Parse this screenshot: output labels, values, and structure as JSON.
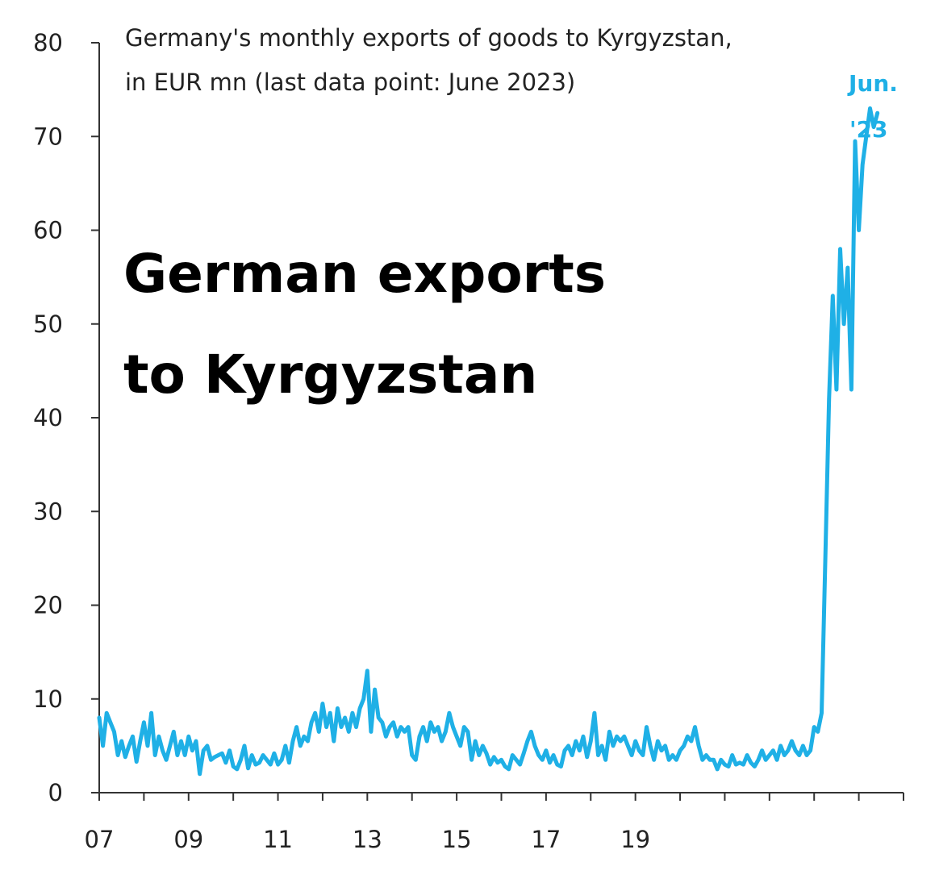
{
  "chart_data": {
    "type": "line",
    "title_lines": [
      "German exports",
      "to Kyrgyzstan"
    ],
    "subtitle_lines": [
      "Germany's monthly exports of goods to Kyrgyzstan,",
      "in EUR mn (last data point: June 2023)"
    ],
    "end_label_lines": [
      "Jun.",
      "'23"
    ],
    "ylim": [
      0,
      80
    ],
    "y_ticks": [
      0,
      10,
      20,
      30,
      40,
      50,
      60,
      70,
      80
    ],
    "x_start_year": 2007,
    "x_end_year": 2025,
    "x_tick_years": [
      2007,
      2008,
      2009,
      2010,
      2011,
      2012,
      2013,
      2014,
      2015,
      2016,
      2017,
      2018,
      2019,
      2020,
      2021,
      2022,
      2023,
      2024,
      2025
    ],
    "x_tick_labels": [
      {
        "year": 2007,
        "label": "07"
      },
      {
        "year": 2009,
        "label": "09"
      },
      {
        "year": 2011,
        "label": "11"
      },
      {
        "year": 2013,
        "label": "13"
      },
      {
        "year": 2015,
        "label": "15"
      },
      {
        "year": 2017,
        "label": "17"
      },
      {
        "year": 2019,
        "label": "19"
      }
    ],
    "grid": false,
    "line_color": "#1fb0e6",
    "series": [
      {
        "start": "2007-01",
        "end": "2023-06",
        "values": [
          8.0,
          5.0,
          8.5,
          7.5,
          6.5,
          4.0,
          5.5,
          3.8,
          5.0,
          6.0,
          3.3,
          5.5,
          7.5,
          5.0,
          8.5,
          4.0,
          6.0,
          4.5,
          3.5,
          5.0,
          6.5,
          4.0,
          5.5,
          4.0,
          6.0,
          4.5,
          5.5,
          2.0,
          4.5,
          5.0,
          3.5,
          3.8,
          4.0,
          4.2,
          3.2,
          4.5,
          2.8,
          2.5,
          3.5,
          5.0,
          2.6,
          4.0,
          3.0,
          3.2,
          4.0,
          3.5,
          3.0,
          4.2,
          3.0,
          3.5,
          5.0,
          3.2,
          5.5,
          7.0,
          5.0,
          6.0,
          5.5,
          7.5,
          8.5,
          6.5,
          9.5,
          7.0,
          8.5,
          5.5,
          9.0,
          7.0,
          8.0,
          6.5,
          8.5,
          7.0,
          9.0,
          10.0,
          13.0,
          6.5,
          11.0,
          8.0,
          7.5,
          6.0,
          7.0,
          7.5,
          6.0,
          7.0,
          6.5,
          7.0,
          4.0,
          3.5,
          6.0,
          7.0,
          5.5,
          7.5,
          6.5,
          7.0,
          5.5,
          6.5,
          8.5,
          7.0,
          6.0,
          5.0,
          7.0,
          6.5,
          3.5,
          5.5,
          4.0,
          5.0,
          4.2,
          3.0,
          3.8,
          3.2,
          3.5,
          2.8,
          2.5,
          4.0,
          3.5,
          3.0,
          4.2,
          5.5,
          6.5,
          5.0,
          4.0,
          3.5,
          4.5,
          3.2,
          4.0,
          3.0,
          2.8,
          4.5,
          5.0,
          4.0,
          5.5,
          4.5,
          6.0,
          3.8,
          5.5,
          8.5,
          4.0,
          5.0,
          3.5,
          6.5,
          5.0,
          6.0,
          5.5,
          6.0,
          5.0,
          4.0,
          5.5,
          4.5,
          4.0,
          7.0,
          5.0,
          3.5,
          5.5,
          4.5,
          5.0,
          3.5,
          4.0,
          3.5,
          4.5,
          5.0,
          6.0,
          5.5,
          7.0,
          5.0,
          3.5,
          4.0,
          3.5,
          3.5,
          2.5,
          3.5,
          3.0,
          2.8,
          4.0,
          3.0,
          3.2,
          3.0,
          4.0,
          3.2,
          2.8,
          3.5,
          4.5,
          3.5,
          4.0,
          4.5,
          3.5,
          5.0,
          4.0,
          4.5,
          5.5,
          4.5,
          4.0,
          5.0,
          4.0,
          4.5,
          7.0,
          6.5,
          8.5,
          25.0,
          42.0,
          53.0,
          43.0,
          58.0,
          50.0,
          56.0,
          43.0,
          69.5,
          60.0,
          67.0,
          70.0,
          73.0,
          71.0,
          72.5
        ]
      }
    ]
  }
}
